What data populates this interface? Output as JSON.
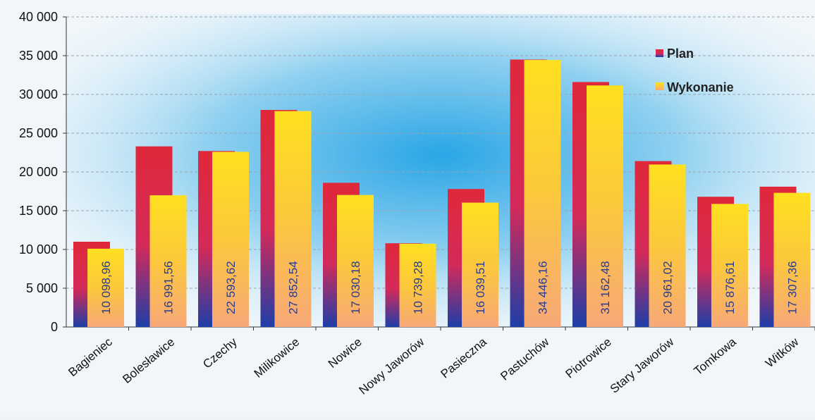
{
  "chart_data": {
    "type": "bar",
    "categories": [
      "Bagieniec",
      "Bolesławice",
      "Czechy",
      "Milikowice",
      "Nowice",
      "Nowy Jaworów",
      "Pasieczna",
      "Pastuchów",
      "Piotrowice",
      "Stary Jaworów",
      "Tomkowa",
      "Witków"
    ],
    "series": [
      {
        "name": "Plan",
        "values": [
          11000,
          23300,
          22700,
          28000,
          18600,
          10800,
          17800,
          34500,
          31600,
          21400,
          16800,
          18100
        ],
        "color_top": "#e0283a",
        "color_bottom": "#1d3ea8"
      },
      {
        "name": "Wykonanie",
        "values": [
          10098.96,
          16991.56,
          22593.62,
          27852.54,
          17030.18,
          10739.28,
          16039.51,
          34446.16,
          31162.48,
          20961.02,
          15876.61,
          17307.36
        ],
        "labels": [
          "10 098,96",
          "16 991,56",
          "22 593,62",
          "27 852,54",
          "17 030,18",
          "10 739,28",
          "16 039,51",
          "34 446,16",
          "31 162,48",
          "20 961,02",
          "15 876,61",
          "17 307,36"
        ],
        "color_top": "#ffe020",
        "color_bottom": "#f7a878"
      }
    ],
    "yticks": [
      0,
      5000,
      10000,
      15000,
      20000,
      25000,
      30000,
      35000,
      40000
    ],
    "ytick_labels": [
      "0",
      "5 000",
      "10 000",
      "15 000",
      "20 000",
      "25 000",
      "30 000",
      "35 000",
      "40 000"
    ],
    "ylim": [
      0,
      40000
    ],
    "grid": true,
    "legend_position": "top-right",
    "title": "",
    "xlabel": "",
    "ylabel": "",
    "value_label_color": "#2a3b8f"
  }
}
